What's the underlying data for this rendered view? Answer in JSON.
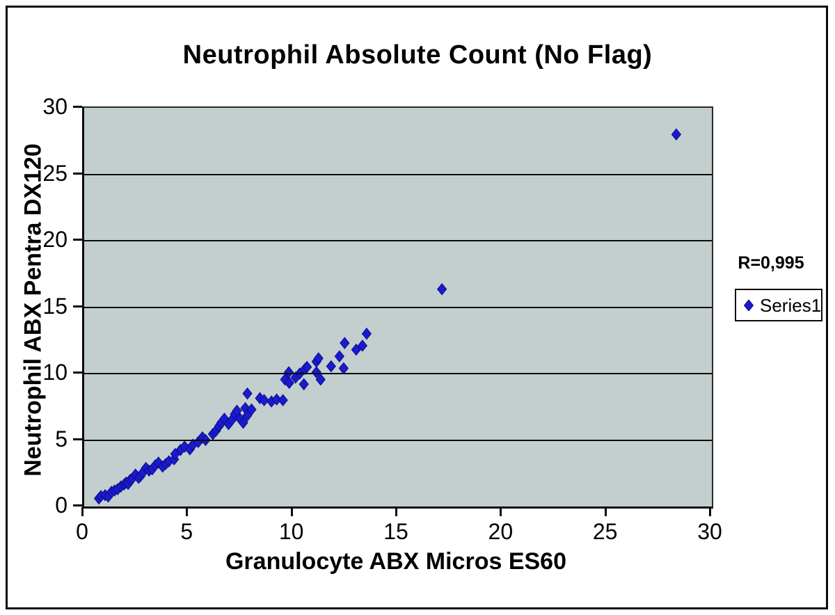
{
  "figure": {
    "title": "Neutrophil Absolute Count (No Flag)",
    "r_annotation": "R=0,995",
    "legend": {
      "series_label": "Series1",
      "marker": "diamond-icon"
    }
  },
  "colors": {
    "plot_background": "#c3cfcf",
    "point_fill": "#1a1ace",
    "point_edge": "#0d0d8a",
    "axis": "#0b0b0b",
    "figure_border": "#0b0b0b",
    "text": "#000000"
  },
  "chart_data": {
    "type": "scatter",
    "title": "Neutrophil Absolute Count (No Flag)",
    "xlabel": "Granulocyte ABX Micros ES60",
    "ylabel": "Neutrophil ABX Pentra DX120",
    "xlim": [
      0,
      30
    ],
    "ylim": [
      0,
      30
    ],
    "xticks": [
      0,
      5,
      10,
      15,
      20,
      25,
      30
    ],
    "yticks": [
      0,
      5,
      10,
      15,
      20,
      25,
      30
    ],
    "grid": "horizontal-only",
    "legend_position": "right",
    "annotation": "R=0,995",
    "series": [
      {
        "name": "Series1",
        "marker": "diamond",
        "color": "#1a1ace",
        "points": [
          [
            0.7,
            0.6
          ],
          [
            0.8,
            0.78
          ],
          [
            1.0,
            0.85
          ],
          [
            1.15,
            0.75
          ],
          [
            1.3,
            1.1
          ],
          [
            1.45,
            1.2
          ],
          [
            1.6,
            1.3
          ],
          [
            1.75,
            1.5
          ],
          [
            1.9,
            1.65
          ],
          [
            2.0,
            1.8
          ],
          [
            2.1,
            1.7
          ],
          [
            2.2,
            2.0
          ],
          [
            2.3,
            2.1
          ],
          [
            2.45,
            2.4
          ],
          [
            2.6,
            2.15
          ],
          [
            2.7,
            2.3
          ],
          [
            2.8,
            2.55
          ],
          [
            2.95,
            2.9
          ],
          [
            3.1,
            2.7
          ],
          [
            3.25,
            2.8
          ],
          [
            3.4,
            3.1
          ],
          [
            3.55,
            3.3
          ],
          [
            3.75,
            3.0
          ],
          [
            3.9,
            3.2
          ],
          [
            4.05,
            3.4
          ],
          [
            4.3,
            3.55
          ],
          [
            4.35,
            3.95
          ],
          [
            4.6,
            4.25
          ],
          [
            4.8,
            4.5
          ],
          [
            5.05,
            4.3
          ],
          [
            5.2,
            4.65
          ],
          [
            5.45,
            4.85
          ],
          [
            5.65,
            5.2
          ],
          [
            5.8,
            5.0
          ],
          [
            6.15,
            5.45
          ],
          [
            6.3,
            5.7
          ],
          [
            6.45,
            6.05
          ],
          [
            6.55,
            6.3
          ],
          [
            6.7,
            6.6
          ],
          [
            6.9,
            6.2
          ],
          [
            7.05,
            6.5
          ],
          [
            7.2,
            6.95
          ],
          [
            7.3,
            7.2
          ],
          [
            7.45,
            6.6
          ],
          [
            7.6,
            6.3
          ],
          [
            7.7,
            7.4
          ],
          [
            7.8,
            6.85
          ],
          [
            7.8,
            8.5
          ],
          [
            8.0,
            7.3
          ],
          [
            8.4,
            8.15
          ],
          [
            8.6,
            8.0
          ],
          [
            8.95,
            7.9
          ],
          [
            9.2,
            8.05
          ],
          [
            9.5,
            8.0
          ],
          [
            9.6,
            9.55
          ],
          [
            9.78,
            10.1
          ],
          [
            9.8,
            9.3
          ],
          [
            10.1,
            9.7
          ],
          [
            10.3,
            10.0
          ],
          [
            10.5,
            9.2
          ],
          [
            10.55,
            10.35
          ],
          [
            10.65,
            10.5
          ],
          [
            11.1,
            10.1
          ],
          [
            11.1,
            10.9
          ],
          [
            11.2,
            11.15
          ],
          [
            11.3,
            9.55
          ],
          [
            11.8,
            10.55
          ],
          [
            12.2,
            11.3
          ],
          [
            12.4,
            10.4
          ],
          [
            12.45,
            12.3
          ],
          [
            13.0,
            11.8
          ],
          [
            13.3,
            12.1
          ],
          [
            13.5,
            13.0
          ],
          [
            17.1,
            16.35
          ],
          [
            28.3,
            28.0
          ]
        ]
      }
    ]
  }
}
